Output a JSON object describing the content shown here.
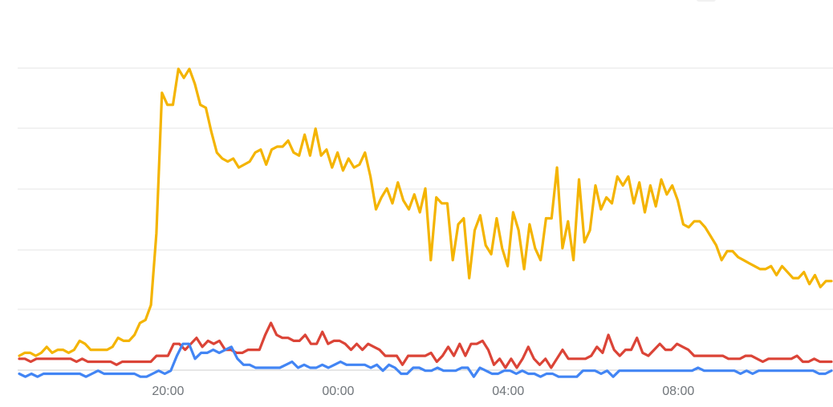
{
  "chart_data": {
    "type": "line",
    "x_unit": "hours since first sample (first sample at 16:30)",
    "x_tick_labels": [
      {
        "x": 3.5,
        "label": "20:00"
      },
      {
        "x": 7.5,
        "label": "00:00"
      },
      {
        "x": 11.5,
        "label": "04:00"
      },
      {
        "x": 15.5,
        "label": "08:00"
      }
    ],
    "xlim": [
      0,
      19.1
    ],
    "ylim": [
      0,
      100
    ],
    "grid": true,
    "series": [
      {
        "color": "#f4b400",
        "values": [
          4,
          5,
          5,
          4,
          5,
          7,
          5,
          6,
          6,
          5,
          6,
          9,
          8,
          6,
          6,
          6,
          6,
          7,
          10,
          9,
          9,
          11,
          15,
          16,
          21,
          45,
          92,
          88,
          88,
          100,
          97,
          100,
          95,
          88,
          87,
          79,
          72,
          70,
          69,
          70,
          67,
          68,
          69,
          72,
          73,
          68,
          73,
          74,
          74,
          76,
          72,
          71,
          78,
          71,
          80,
          71,
          73,
          67,
          72,
          66,
          70,
          67,
          68,
          72,
          64,
          53,
          57,
          60,
          55,
          62,
          56,
          53,
          58,
          52,
          60,
          36,
          57,
          55,
          55,
          36,
          48,
          50,
          30,
          46,
          51,
          41,
          38,
          50,
          40,
          34,
          52,
          46,
          33,
          48,
          40,
          36,
          50,
          50,
          67,
          40,
          49,
          36,
          63,
          42,
          46,
          61,
          53,
          57,
          55,
          64,
          61,
          64,
          55,
          62,
          52,
          61,
          54,
          63,
          58,
          61,
          56,
          48,
          47,
          49,
          49,
          47,
          44,
          41,
          36,
          39,
          39,
          37,
          36,
          35,
          34,
          33,
          33,
          34,
          31,
          34,
          32,
          30,
          30,
          32,
          28,
          31,
          27,
          29,
          29
        ]
      },
      {
        "color": "#db4437",
        "values": [
          3,
          3,
          2,
          3,
          3,
          3,
          3,
          3,
          3,
          3,
          2,
          3,
          2,
          2,
          2,
          2,
          2,
          1,
          2,
          2,
          2,
          2,
          2,
          2,
          4,
          4,
          4,
          8,
          8,
          6,
          8,
          10,
          7,
          9,
          8,
          9,
          6,
          6,
          5,
          5,
          6,
          6,
          6,
          11,
          15,
          11,
          10,
          10,
          9,
          9,
          11,
          8,
          8,
          12,
          8,
          9,
          9,
          8,
          6,
          8,
          6,
          8,
          7,
          6,
          4,
          4,
          4,
          1,
          4,
          4,
          4,
          4,
          5,
          2,
          4,
          7,
          4,
          8,
          4,
          8,
          8,
          9,
          6,
          1,
          3,
          0,
          3,
          0,
          3,
          7,
          3,
          1,
          3,
          0,
          3,
          6,
          3,
          3,
          3,
          3,
          4,
          7,
          5,
          11,
          6,
          4,
          6,
          6,
          10,
          5,
          4,
          6,
          8,
          6,
          6,
          8,
          7,
          6,
          4,
          4,
          4,
          4,
          4,
          4,
          3,
          3,
          3,
          4,
          4,
          3,
          2,
          3,
          3,
          3,
          3,
          3,
          4,
          2,
          2,
          3,
          2,
          2,
          2
        ]
      },
      {
        "color": "#4285f4",
        "values": [
          -2,
          -3,
          -2,
          -3,
          -2,
          -2,
          -2,
          -2,
          -2,
          -2,
          -2,
          -3,
          -2,
          -1,
          -2,
          -2,
          -2,
          -2,
          -2,
          -2,
          -3,
          -3,
          -2,
          -1,
          -2,
          -1,
          4,
          8,
          8,
          3,
          5,
          5,
          6,
          5,
          6,
          7,
          3,
          1,
          1,
          0,
          0,
          0,
          0,
          0,
          1,
          2,
          0,
          1,
          0,
          0,
          1,
          0,
          1,
          2,
          1,
          1,
          1,
          1,
          0,
          1,
          -1,
          1,
          0,
          -2,
          -2,
          0,
          0,
          -1,
          -1,
          0,
          -1,
          -1,
          -1,
          0,
          0,
          -3,
          0,
          -1,
          -2,
          -2,
          -1,
          -1,
          -2,
          -1,
          -2,
          -2,
          -3,
          -2,
          -2,
          -3,
          -3,
          -3,
          -3,
          -1,
          -1,
          -1,
          -2,
          -1,
          -3,
          -1,
          -1,
          -1,
          -1,
          -1,
          -1,
          -1,
          -1,
          -1,
          -1,
          -1,
          -1,
          -1,
          0,
          -1,
          -1,
          -1,
          -1,
          -1,
          -1,
          -2,
          -1,
          -2,
          -1,
          -1,
          -1,
          -1,
          -1,
          -1,
          -1,
          -1,
          -1,
          -1,
          -2,
          -2,
          -1
        ]
      }
    ]
  }
}
